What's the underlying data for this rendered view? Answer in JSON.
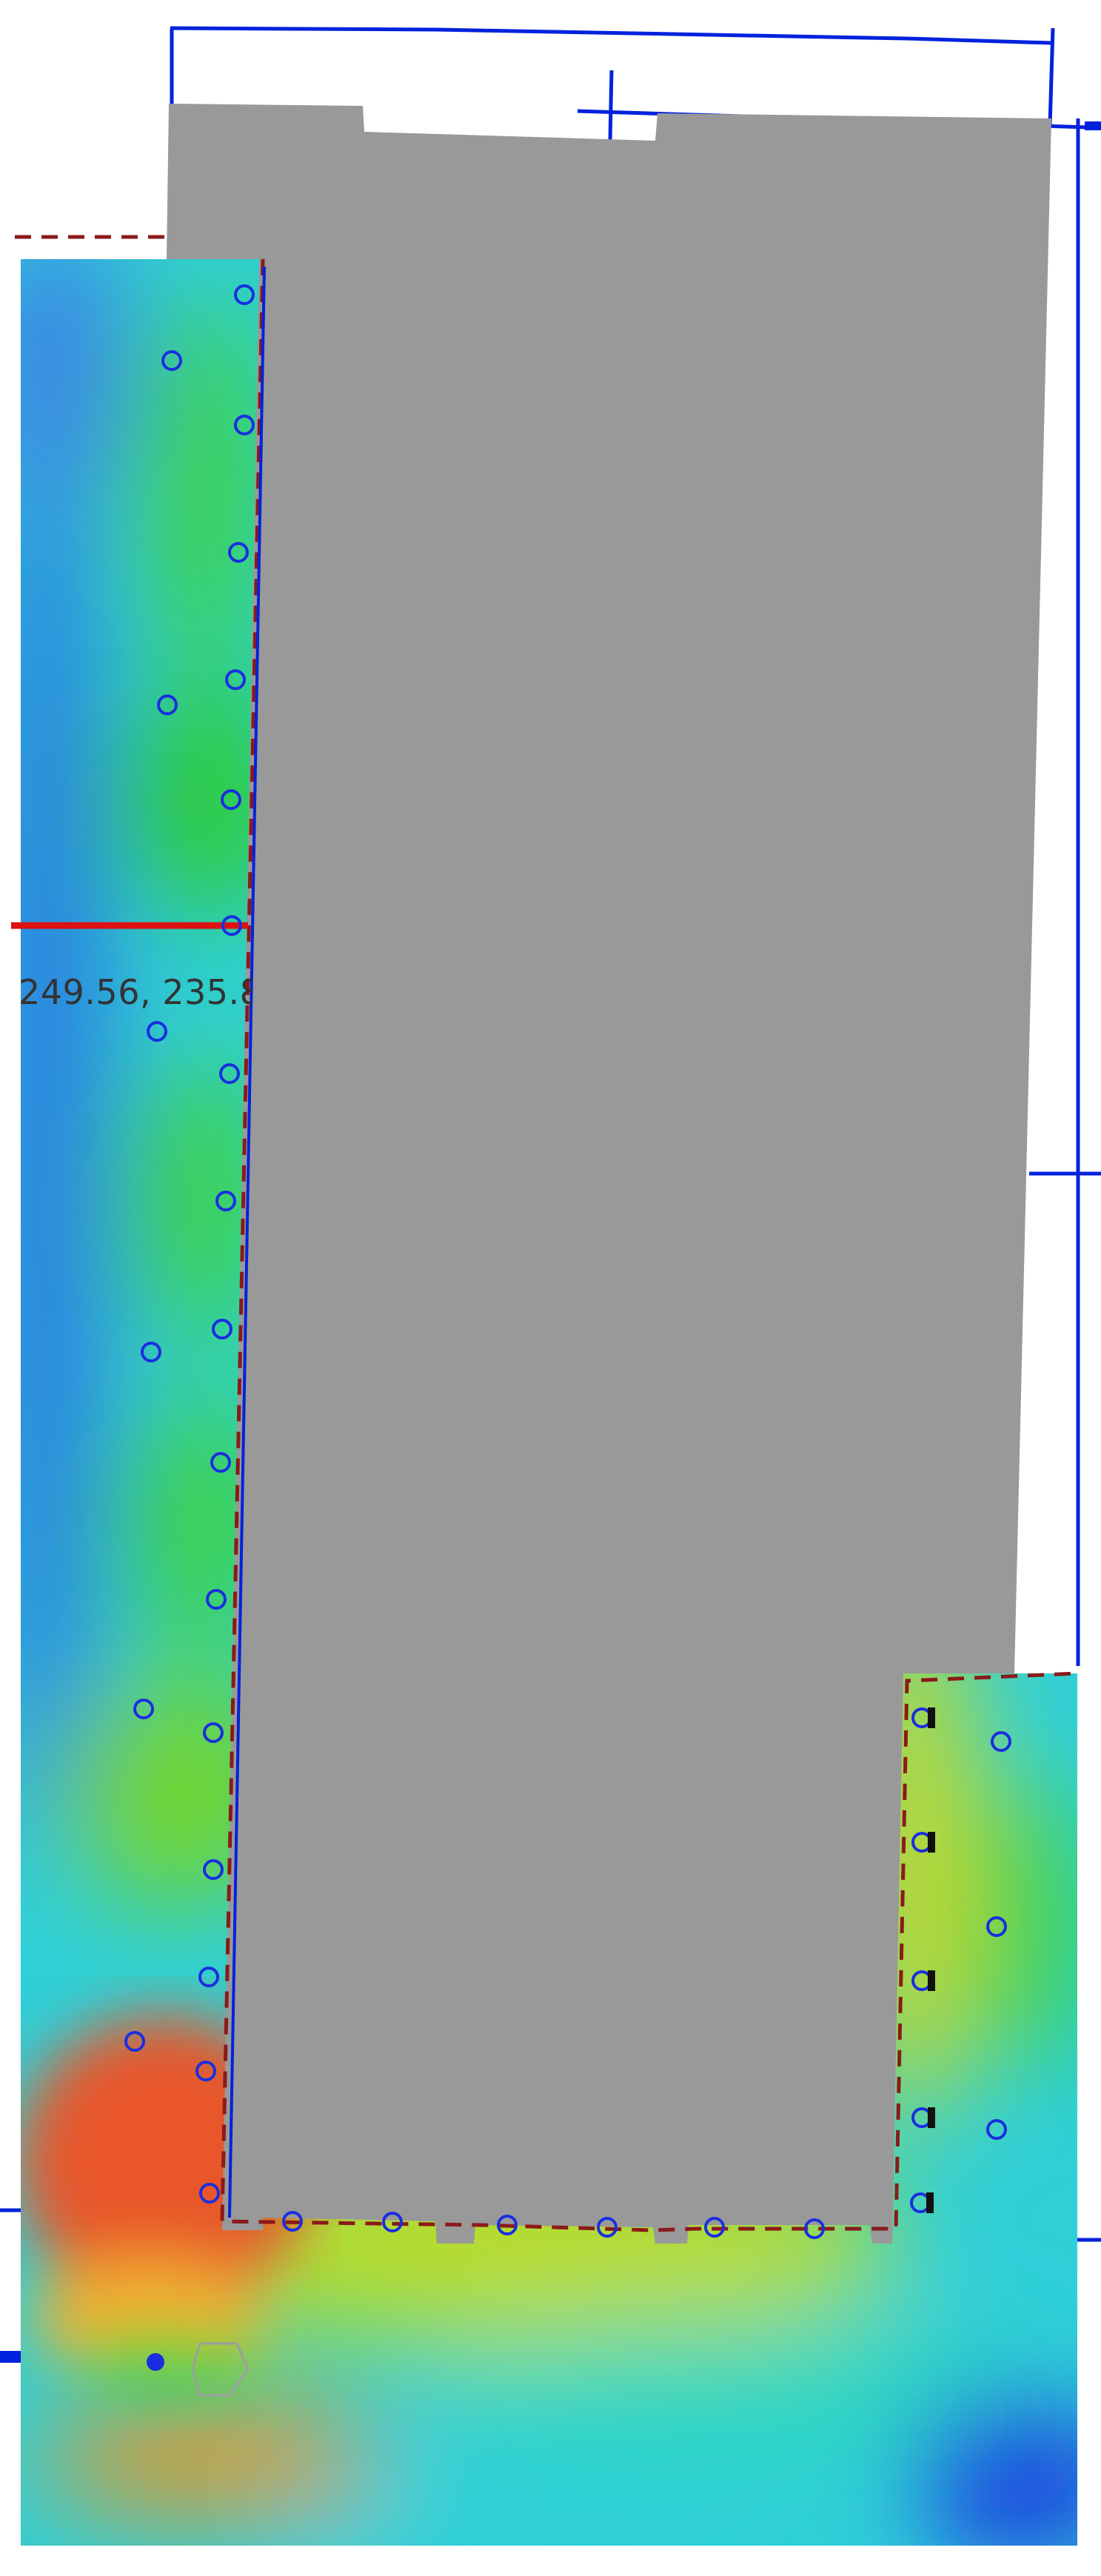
{
  "map": {
    "coordinate_readout": "249.56, 235.8",
    "colors": {
      "background": "#ffffff",
      "building_fill": "#999999",
      "outline_blue": "#0022dd",
      "boundary_dashed": "#8b1a1a",
      "cursor_line": "#dd1111",
      "marker_stroke": "#1a2ee0",
      "readout_text": "#333333"
    },
    "heatmap_palette": [
      "#1a2ae0",
      "#2a7ee0",
      "#2fd7d0",
      "#22cc44",
      "#55d028",
      "#c8dc2a",
      "#e8a030",
      "#e04a2a"
    ],
    "marker_types": [
      "ring-marker",
      "filled-dot-marker",
      "black-square-marker"
    ],
    "icons": [
      "ring-marker-icon",
      "filled-dot-icon",
      "black-square-icon"
    ]
  }
}
